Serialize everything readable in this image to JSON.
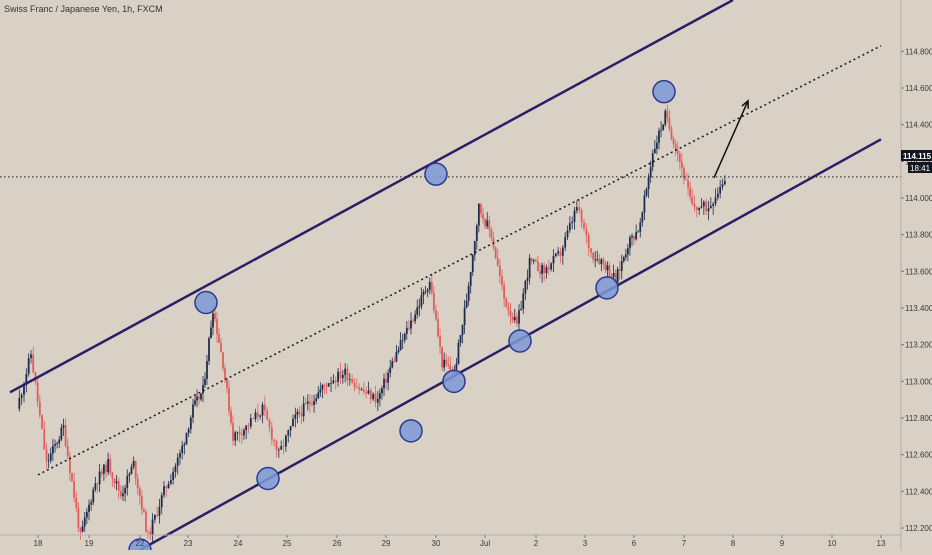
{
  "symbol_title": "Swiss Franc / Japanese Yen, 1h, FXCM",
  "last_price_label": "114.115",
  "countdown_label": "18:41",
  "colors": {
    "background": "#d9d0c6",
    "candle_up": "#1d2c4c",
    "candle_down": "#e35c5c",
    "channel_line": "#2a1f66",
    "marker_fill": "#7d99d6",
    "marker_stroke": "#2b3a8f",
    "axis_text": "#3a3a3a",
    "price_tag_bg": "#131722",
    "price_tag_text": "#ffffff"
  },
  "chart_data": {
    "type": "candlestick",
    "title": "Swiss Franc / Japanese Yen, 1h, FXCM",
    "x_tick_labels": [
      "18",
      "19",
      "22",
      "23",
      "24",
      "25",
      "26",
      "29",
      "30",
      "Jul",
      "2",
      "3",
      "6",
      "7",
      "8",
      "9",
      "10",
      "13"
    ],
    "y_tick_labels": [
      "112.200",
      "112.400",
      "112.600",
      "112.800",
      "113.000",
      "113.200",
      "113.400",
      "113.600",
      "113.800",
      "114.000",
      "114.200",
      "114.400",
      "114.600",
      "114.800"
    ],
    "y_range": [
      112.08,
      115.08
    ],
    "last_price": 114.115,
    "close_path": [
      {
        "date": "Jun 17",
        "close": 112.85
      },
      {
        "date": "Jun 17",
        "close": 113.15
      },
      {
        "date": "Jun 18",
        "close": 112.55
      },
      {
        "date": "Jun 18",
        "close": 112.75
      },
      {
        "date": "Jun 18",
        "close": 112.15
      },
      {
        "date": "Jun 19",
        "close": 112.45
      },
      {
        "date": "Jun 19",
        "close": 112.55
      },
      {
        "date": "Jun 19",
        "close": 112.38
      },
      {
        "date": "Jun 19",
        "close": 112.55
      },
      {
        "date": "Jun 22",
        "close": 112.15
      },
      {
        "date": "Jun 22",
        "close": 112.4
      },
      {
        "date": "Jun 22",
        "close": 112.6
      },
      {
        "date": "Jun 23",
        "close": 112.85
      },
      {
        "date": "Jun 23",
        "close": 112.95
      },
      {
        "date": "Jun 23",
        "close": 113.4
      },
      {
        "date": "Jun 23",
        "close": 113.1
      },
      {
        "date": "Jun 23",
        "close": 112.7
      },
      {
        "date": "Jun 24",
        "close": 112.75
      },
      {
        "date": "Jun 24",
        "close": 112.85
      },
      {
        "date": "Jun 24",
        "close": 112.6
      },
      {
        "date": "Jun 25",
        "close": 112.8
      },
      {
        "date": "Jun 25",
        "close": 112.9
      },
      {
        "date": "Jun 25",
        "close": 113.0
      },
      {
        "date": "Jun 26",
        "close": 113.05
      },
      {
        "date": "Jun 26",
        "close": 112.95
      },
      {
        "date": "Jun 26",
        "close": 112.9
      },
      {
        "date": "Jun 29",
        "close": 113.1
      },
      {
        "date": "Jun 29",
        "close": 113.25
      },
      {
        "date": "Jun 29",
        "close": 113.4
      },
      {
        "date": "Jun 29",
        "close": 113.55
      },
      {
        "date": "Jun 30",
        "close": 113.1
      },
      {
        "date": "Jun 30",
        "close": 113.05
      },
      {
        "date": "Jun 30",
        "close": 113.45
      },
      {
        "date": "Jun 30",
        "close": 113.95
      },
      {
        "date": "Jul 1",
        "close": 113.8
      },
      {
        "date": "Jul 1",
        "close": 113.45
      },
      {
        "date": "Jul 1",
        "close": 113.3
      },
      {
        "date": "Jul 1",
        "close": 113.65
      },
      {
        "date": "Jul 2",
        "close": 113.6
      },
      {
        "date": "Jul 2",
        "close": 113.7
      },
      {
        "date": "Jul 2",
        "close": 113.95
      },
      {
        "date": "Jul 3",
        "close": 113.7
      },
      {
        "date": "Jul 3",
        "close": 113.65
      },
      {
        "date": "Jul 3",
        "close": 113.55
      },
      {
        "date": "Jul 3",
        "close": 113.75
      },
      {
        "date": "Jul 6",
        "close": 113.85
      },
      {
        "date": "Jul 6",
        "close": 114.25
      },
      {
        "date": "Jul 6",
        "close": 114.45
      },
      {
        "date": "Jul 6",
        "close": 114.25
      },
      {
        "date": "Jul 7",
        "close": 113.95
      },
      {
        "date": "Jul 7",
        "close": 113.95
      },
      {
        "date": "Jul 7",
        "close": 114.115
      }
    ],
    "upper_channel": {
      "start": {
        "date": "Jun 17",
        "price": 112.94
      },
      "end": {
        "date": "Jul 8",
        "price": 115.08
      }
    },
    "lower_channel": {
      "start": {
        "date": "Jun 22",
        "price": 112.08
      },
      "end": {
        "date": "Jul 13",
        "price": 114.32
      }
    },
    "midline": {
      "start": {
        "date": "Jun 18",
        "price": 112.49
      },
      "end": {
        "date": "Jul 13",
        "price": 114.83
      }
    },
    "touch_markers": [
      {
        "date": "Jun 22",
        "price": 112.08
      },
      {
        "date": "Jun 23",
        "price": 113.43
      },
      {
        "date": "Jun 24",
        "price": 112.47
      },
      {
        "date": "Jun 29",
        "price": 112.73
      },
      {
        "date": "Jun 30",
        "price": 113.0
      },
      {
        "date": "Jun 30",
        "price": 114.13
      },
      {
        "date": "Jul 1",
        "price": 113.22
      },
      {
        "date": "Jul 3",
        "price": 113.51
      },
      {
        "date": "Jul 6",
        "price": 114.58
      }
    ],
    "arrow": {
      "from": {
        "date": "Jul 7",
        "price": 114.11
      },
      "to": {
        "date": "Jul 8",
        "price": 114.53
      }
    }
  }
}
